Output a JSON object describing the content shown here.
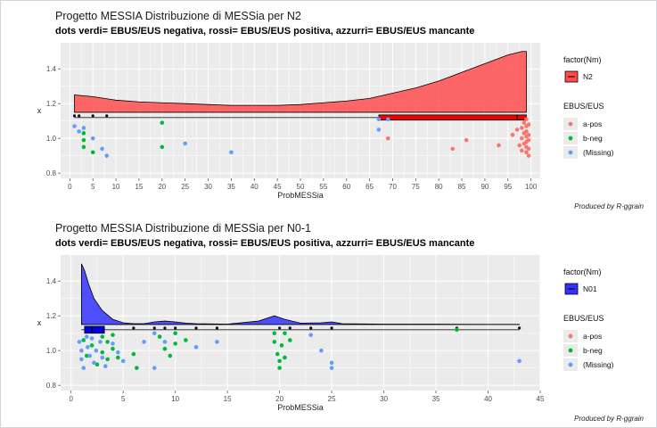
{
  "colors": {
    "panel_bg": "#ebebeb",
    "grid": "#ffffff",
    "a_pos": "#f8766d",
    "b_neg": "#00ba38",
    "missing": "#619cff",
    "density_n2": "#ff4d4d",
    "density_n01": "#3333ff",
    "box_n2": "#ee0000",
    "box_n01": "#0000dd"
  },
  "chart_data": [
    {
      "type": "scatter",
      "title": "Progetto MESSIA  Distribuzione di MESSia per N2",
      "subtitle": "dots verdi= EBUS/EUS negativa, rossi= EBUS/EUS positiva, azzurri= EBUS/EUS mancante",
      "xlabel": "ProbMESSia",
      "ylabel": "x",
      "xlim": [
        -2,
        102
      ],
      "ylim": [
        0.77,
        1.55
      ],
      "x_ticks": [
        0,
        5,
        10,
        15,
        20,
        25,
        30,
        35,
        40,
        45,
        50,
        55,
        60,
        65,
        70,
        75,
        80,
        85,
        90,
        95,
        100
      ],
      "y_ticks": [
        0.8,
        1.0,
        1.2,
        1.4
      ],
      "caption": "Produced by R-ggrain",
      "legend": {
        "fill_title": "factor(Nm)",
        "fill_entries": [
          "N2"
        ],
        "color_title": "EBUS/EUS",
        "color_entries": [
          "a-pos",
          "b-neg",
          "(Missing)"
        ]
      },
      "density": {
        "baseline": 1.15,
        "x": [
          1,
          5,
          10,
          15,
          20,
          25,
          30,
          35,
          40,
          45,
          50,
          55,
          60,
          65,
          70,
          75,
          80,
          85,
          90,
          95,
          98,
          99
        ],
        "y": [
          1.25,
          1.24,
          1.22,
          1.21,
          1.205,
          1.2,
          1.195,
          1.19,
          1.19,
          1.19,
          1.195,
          1.205,
          1.215,
          1.23,
          1.26,
          1.29,
          1.33,
          1.38,
          1.43,
          1.48,
          1.5,
          1.5
        ]
      },
      "boxplot": {
        "y": 1.12,
        "xmin": 1,
        "q1": 67,
        "median": 97,
        "q3": 99,
        "xmax": 99,
        "height": 0.03
      },
      "outlier_dots": {
        "y": 1.13,
        "x": [
          1,
          2,
          5,
          8
        ]
      },
      "points": {
        "a-pos": [
          [
            69,
            1.0
          ],
          [
            83,
            0.94
          ],
          [
            86,
            0.99
          ],
          [
            93,
            0.96
          ],
          [
            96,
            1.02
          ],
          [
            97,
            1.05
          ],
          [
            97.5,
            0.96
          ],
          [
            98,
            1.06
          ],
          [
            98,
            1.0
          ],
          [
            98,
            0.93
          ],
          [
            98.5,
            1.09
          ],
          [
            98.5,
            1.03
          ],
          [
            98.5,
            0.97
          ],
          [
            99,
            1.11
          ],
          [
            99,
            1.07
          ],
          [
            99,
            1.04
          ],
          [
            99,
            1.01
          ],
          [
            99,
            0.98
          ],
          [
            99,
            0.95
          ],
          [
            99,
            0.92
          ],
          [
            99.5,
            1.08
          ],
          [
            99.5,
            1.02
          ],
          [
            99.5,
            0.99
          ],
          [
            99.5,
            0.94
          ],
          [
            99.5,
            0.9
          ]
        ],
        "b-neg": [
          [
            3,
            1.03
          ],
          [
            3,
            0.99
          ],
          [
            3,
            0.95
          ],
          [
            5,
            0.92
          ],
          [
            20,
            1.09
          ],
          [
            20,
            0.95
          ]
        ],
        "missing": [
          [
            1,
            1.07
          ],
          [
            2,
            1.04
          ],
          [
            3,
            1.06
          ],
          [
            5,
            1.0
          ],
          [
            7,
            0.94
          ],
          [
            8,
            0.9
          ],
          [
            25,
            0.97
          ],
          [
            35,
            0.92
          ],
          [
            67,
            1.11
          ],
          [
            67,
            1.05
          ],
          [
            69,
            1.11
          ]
        ]
      }
    },
    {
      "type": "scatter",
      "title": "Progetto MESSIA  Distribuzione di MESSia per N0-1",
      "subtitle": "dots verdi= EBUS/EUS negativa, rossi= EBUS/EUS positiva, azzurri= EBUS/EUS mancante",
      "xlabel": "ProbMESSia",
      "ylabel": "x",
      "xlim": [
        -1,
        45
      ],
      "ylim": [
        0.77,
        1.55
      ],
      "x_ticks": [
        0,
        5,
        10,
        15,
        20,
        25,
        30,
        35,
        40,
        45
      ],
      "y_ticks": [
        0.8,
        1.0,
        1.2,
        1.4
      ],
      "caption": "Produced by R-ggrain",
      "legend": {
        "fill_title": "factor(Nm)",
        "fill_entries": [
          "N01"
        ],
        "color_title": "EBUS/EUS",
        "color_entries": [
          "a-pos",
          "b-neg",
          "(Missing)"
        ]
      },
      "density": {
        "baseline": 1.15,
        "x": [
          1,
          1.3,
          1.7,
          2.2,
          3,
          4,
          5,
          6,
          7,
          8,
          9,
          10,
          11,
          12,
          15,
          18,
          19.5,
          20.5,
          22,
          24,
          25,
          26,
          30,
          35,
          40,
          43
        ],
        "y": [
          1.5,
          1.46,
          1.38,
          1.3,
          1.23,
          1.18,
          1.16,
          1.155,
          1.155,
          1.165,
          1.17,
          1.165,
          1.158,
          1.155,
          1.152,
          1.17,
          1.2,
          1.18,
          1.158,
          1.16,
          1.165,
          1.155,
          1.152,
          1.152,
          1.151,
          1.151
        ]
      },
      "boxplot": {
        "y": 1.12,
        "xmin": 1,
        "q1": 1.3,
        "median": 2,
        "q3": 3.2,
        "xmax": 43,
        "height": 0.04
      },
      "outlier_dots": {
        "y": 1.13,
        "x": [
          6,
          8,
          9,
          10,
          12,
          14,
          20,
          21,
          23,
          25,
          37,
          43
        ]
      },
      "points": {
        "a-pos": [],
        "b-neg": [
          [
            1.2,
            1.06
          ],
          [
            1.5,
            0.97
          ],
          [
            2,
            1.03
          ],
          [
            2.5,
            0.92
          ],
          [
            3,
            1.08
          ],
          [
            3,
            0.99
          ],
          [
            3.5,
            1.05
          ],
          [
            3.5,
            0.95
          ],
          [
            4,
            1.09
          ],
          [
            4,
            1.01
          ],
          [
            4.5,
            0.96
          ],
          [
            6,
            0.98
          ],
          [
            6.3,
            0.9
          ],
          [
            8.5,
            1.08
          ],
          [
            9,
            1.01
          ],
          [
            9.5,
            0.97
          ],
          [
            10,
            1.1
          ],
          [
            10,
            1.04
          ],
          [
            11,
            1.06
          ],
          [
            19.5,
            1.1
          ],
          [
            19.5,
            1.05
          ],
          [
            19.8,
            0.98
          ],
          [
            20,
            0.94
          ],
          [
            20,
            0.9
          ],
          [
            20.2,
            1.03
          ],
          [
            20.5,
            1.1
          ],
          [
            20.5,
            0.96
          ],
          [
            21,
            1.06
          ],
          [
            37,
            1.12
          ]
        ],
        "missing": [
          [
            0.8,
            1.05
          ],
          [
            1,
            1.0
          ],
          [
            1,
            0.95
          ],
          [
            1.2,
            0.9
          ],
          [
            1.5,
            1.08
          ],
          [
            1.6,
            1.02
          ],
          [
            1.8,
            0.97
          ],
          [
            2,
            1.07
          ],
          [
            2.2,
            0.93
          ],
          [
            2.4,
            1.0
          ],
          [
            2.8,
            1.05
          ],
          [
            3,
            0.96
          ],
          [
            3.3,
            0.91
          ],
          [
            4,
            1.04
          ],
          [
            4.5,
            0.99
          ],
          [
            5,
            0.94
          ],
          [
            7,
            1.05
          ],
          [
            8,
            1.1
          ],
          [
            8,
            0.9
          ],
          [
            9,
            1.05
          ],
          [
            12,
            1.02
          ],
          [
            14,
            1.05
          ],
          [
            23,
            1.09
          ],
          [
            24,
            1.0
          ],
          [
            25,
            0.93
          ],
          [
            25,
            0.9
          ],
          [
            43,
            0.94
          ]
        ]
      }
    }
  ]
}
